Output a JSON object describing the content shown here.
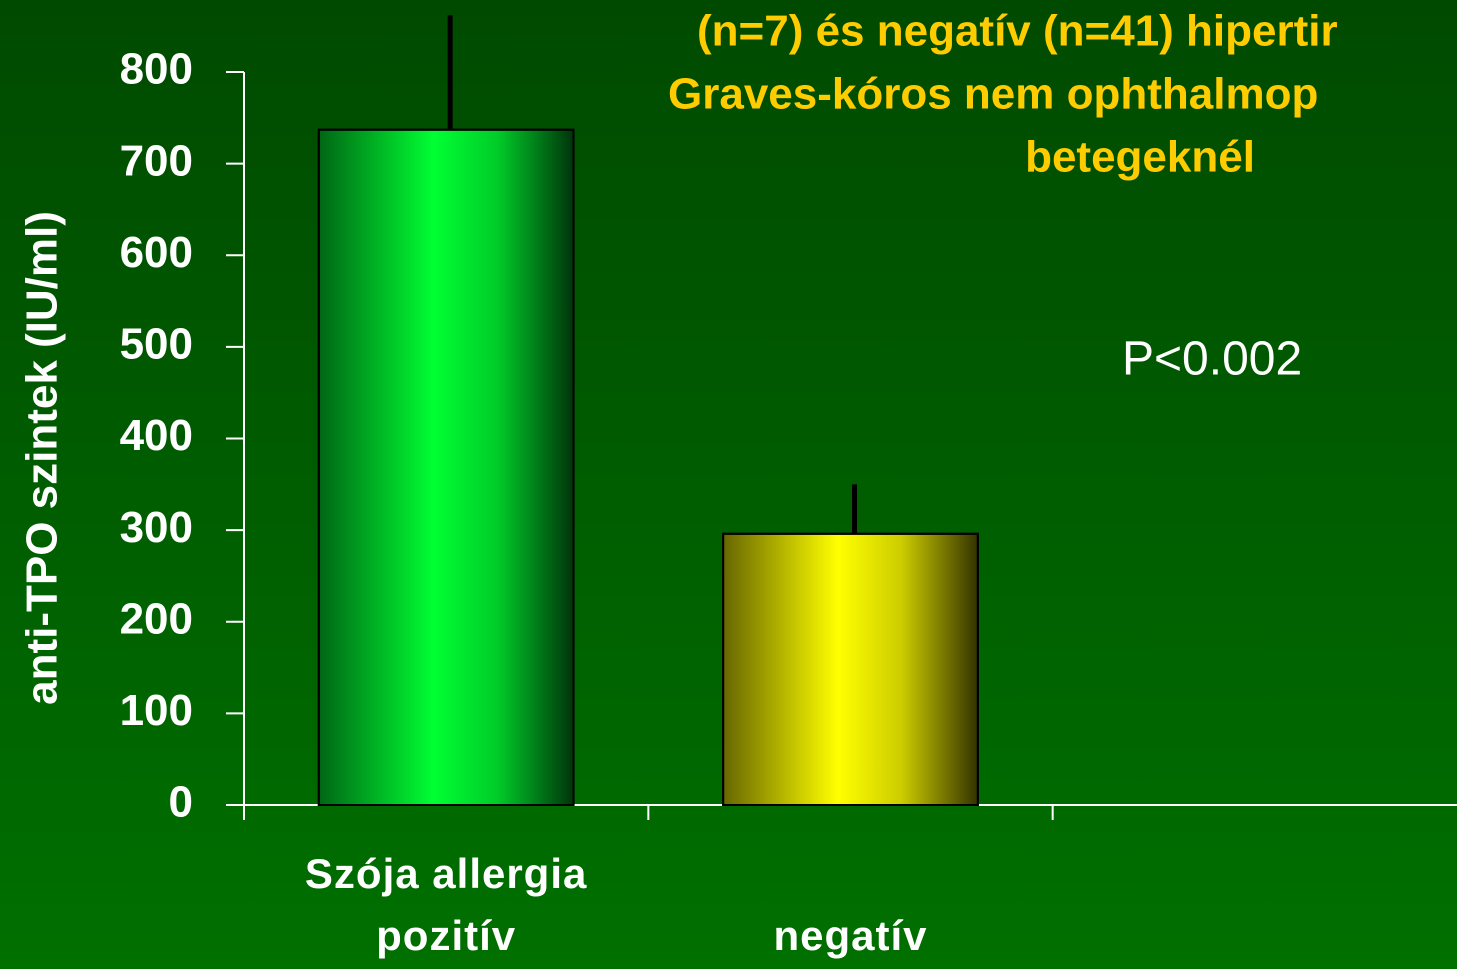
{
  "chart_data": {
    "type": "bar",
    "title": [
      "(n=7) és negatív (n=41) hipertir",
      "Graves-kóros nem ophthalmop",
      "betegeknél"
    ],
    "y_label": "anti-TPO szintek (IU/ml)",
    "annotation": "P<0.002",
    "categories": [
      "Szója allergia pozitív",
      "negatív",
      null
    ],
    "values": [
      737,
      296,
      null
    ],
    "errors": [
      125,
      54,
      null
    ],
    "colors": [
      "#00ff33",
      "#ffff00",
      null
    ],
    "ylim": [
      0,
      800
    ],
    "yticks": [
      0,
      100,
      200,
      300,
      400,
      500,
      600,
      700,
      800
    ]
  }
}
